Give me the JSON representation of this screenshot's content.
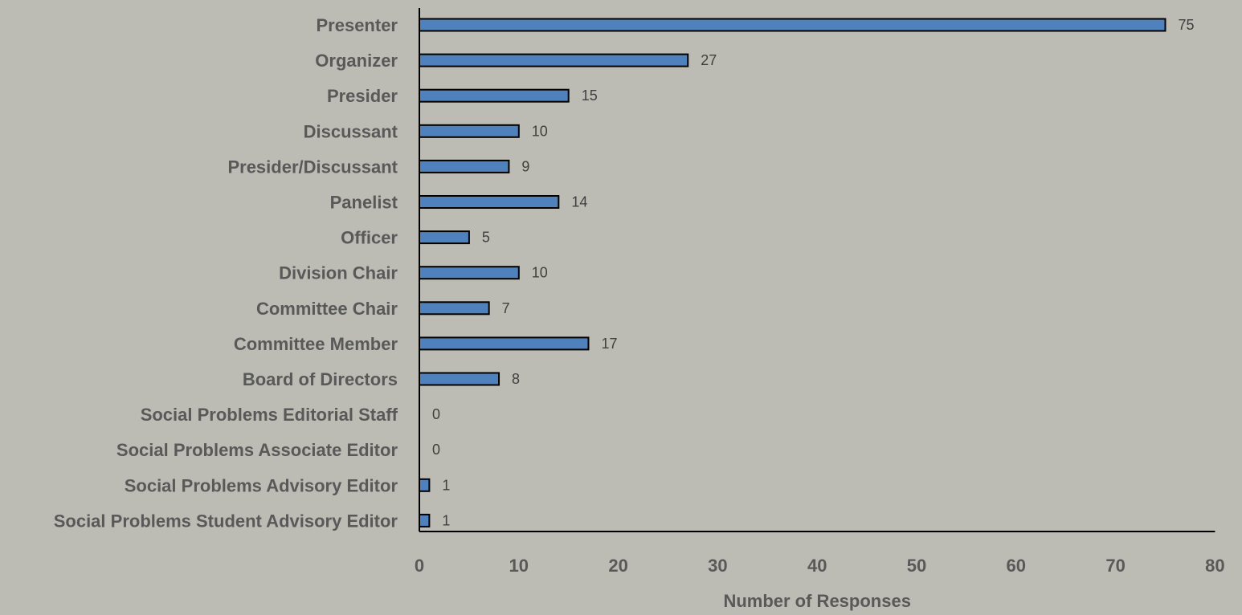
{
  "chart_data": {
    "type": "bar",
    "orientation": "horizontal",
    "categories": [
      "Presenter",
      "Organizer",
      "Presider",
      "Discussant",
      "Presider/Discussant",
      "Panelist",
      "Officer",
      "Division Chair",
      "Committee Chair",
      "Committee Member",
      "Board of Directors",
      "Social Problems Editorial Staff",
      "Social Problems Associate Editor",
      "Social Problems Advisory Editor",
      "Social Problems Student Advisory Editor"
    ],
    "values": [
      75,
      27,
      15,
      10,
      9,
      14,
      5,
      10,
      7,
      17,
      8,
      0,
      0,
      1,
      1
    ],
    "xlabel": "Number of Responses",
    "ylabel": "",
    "title": "",
    "xlim": [
      0,
      80
    ],
    "xticks": [
      0,
      10,
      20,
      30,
      40,
      50,
      60,
      70,
      80
    ],
    "grid": false,
    "legend": "none",
    "colors": {
      "bar_fill": "#4f81bd",
      "bar_stroke": "#000000",
      "background": "#bcbcb4",
      "label_text": "#595959",
      "value_text": "#404040"
    }
  }
}
